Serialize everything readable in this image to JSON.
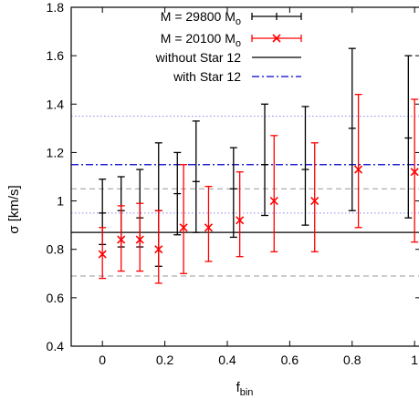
{
  "chart_data": {
    "type": "scatter",
    "xlabel": "f",
    "xlabel_sub": "bin",
    "ylabel": "σ [km/s]",
    "xlim": [
      -0.1,
      1.02
    ],
    "ylim": [
      0.4,
      1.8
    ],
    "xticks": [
      "0",
      "0.2",
      "0.4",
      "0.6",
      "0.8",
      "1"
    ],
    "yticks": [
      "0.4",
      "0.6",
      "0.8",
      "1",
      "1.2",
      "1.4",
      "1.6",
      "1.8"
    ],
    "series": [
      {
        "name_main": "M = 29800 M",
        "name_sub": "o",
        "color": "#000000",
        "marker": "plus",
        "points": [
          {
            "x": 0.0,
            "y": 0.95,
            "lo": 0.82,
            "hi": 1.09
          },
          {
            "x": 0.06,
            "y": 0.96,
            "lo": 0.81,
            "hi": 1.1
          },
          {
            "x": 0.12,
            "y": 0.93,
            "lo": 0.81,
            "hi": 1.13
          },
          {
            "x": 0.18,
            "y": 0.96,
            "lo": 0.73,
            "hi": 1.24
          },
          {
            "x": 0.24,
            "y": 1.03,
            "lo": 0.86,
            "hi": 1.2
          },
          {
            "x": 0.3,
            "y": 1.08,
            "lo": 0.87,
            "hi": 1.33
          },
          {
            "x": 0.42,
            "y": 1.05,
            "lo": 0.85,
            "hi": 1.22
          },
          {
            "x": 0.52,
            "y": 1.15,
            "lo": 0.94,
            "hi": 1.4
          },
          {
            "x": 0.65,
            "y": 1.13,
            "lo": 0.9,
            "hi": 1.39
          },
          {
            "x": 0.8,
            "y": 1.3,
            "lo": 0.96,
            "hi": 1.63
          },
          {
            "x": 0.98,
            "y": 1.26,
            "lo": 0.93,
            "hi": 1.6
          }
        ]
      },
      {
        "name_main": "M = 20100 M",
        "name_sub": "o",
        "color": "#ff0000",
        "marker": "x",
        "points": [
          {
            "x": 0.0,
            "y": 0.78,
            "lo": 0.68,
            "hi": 0.89
          },
          {
            "x": 0.06,
            "y": 0.84,
            "lo": 0.71,
            "hi": 0.98
          },
          {
            "x": 0.12,
            "y": 0.84,
            "lo": 0.71,
            "hi": 0.99
          },
          {
            "x": 0.18,
            "y": 0.8,
            "lo": 0.66,
            "hi": 0.96
          },
          {
            "x": 0.26,
            "y": 0.89,
            "lo": 0.7,
            "hi": 1.15
          },
          {
            "x": 0.34,
            "y": 0.89,
            "lo": 0.75,
            "hi": 1.06
          },
          {
            "x": 0.44,
            "y": 0.92,
            "lo": 0.77,
            "hi": 1.12
          },
          {
            "x": 0.55,
            "y": 1.0,
            "lo": 0.79,
            "hi": 1.27
          },
          {
            "x": 0.68,
            "y": 1.0,
            "lo": 0.79,
            "hi": 1.24
          },
          {
            "x": 0.82,
            "y": 1.13,
            "lo": 0.89,
            "hi": 1.44
          },
          {
            "x": 1.0,
            "y": 1.12,
            "lo": 0.83,
            "hi": 1.42
          }
        ]
      }
    ],
    "reference_lines": [
      {
        "name": "without Star 12",
        "y": 0.87,
        "color": "#000000",
        "style": "solid"
      },
      {
        "name": "with Star 12",
        "y": 1.15,
        "color": "#0000cc",
        "style": "dashdot"
      }
    ],
    "band_lines": [
      {
        "y": 0.69,
        "color": "#999999",
        "style": "dashed"
      },
      {
        "y": 1.05,
        "color": "#999999",
        "style": "dashed"
      },
      {
        "y": 0.95,
        "color": "#8888ee",
        "style": "dotted"
      },
      {
        "y": 1.35,
        "color": "#8888ee",
        "style": "dotted"
      }
    ],
    "legend_position": "top-center",
    "grid": false
  }
}
